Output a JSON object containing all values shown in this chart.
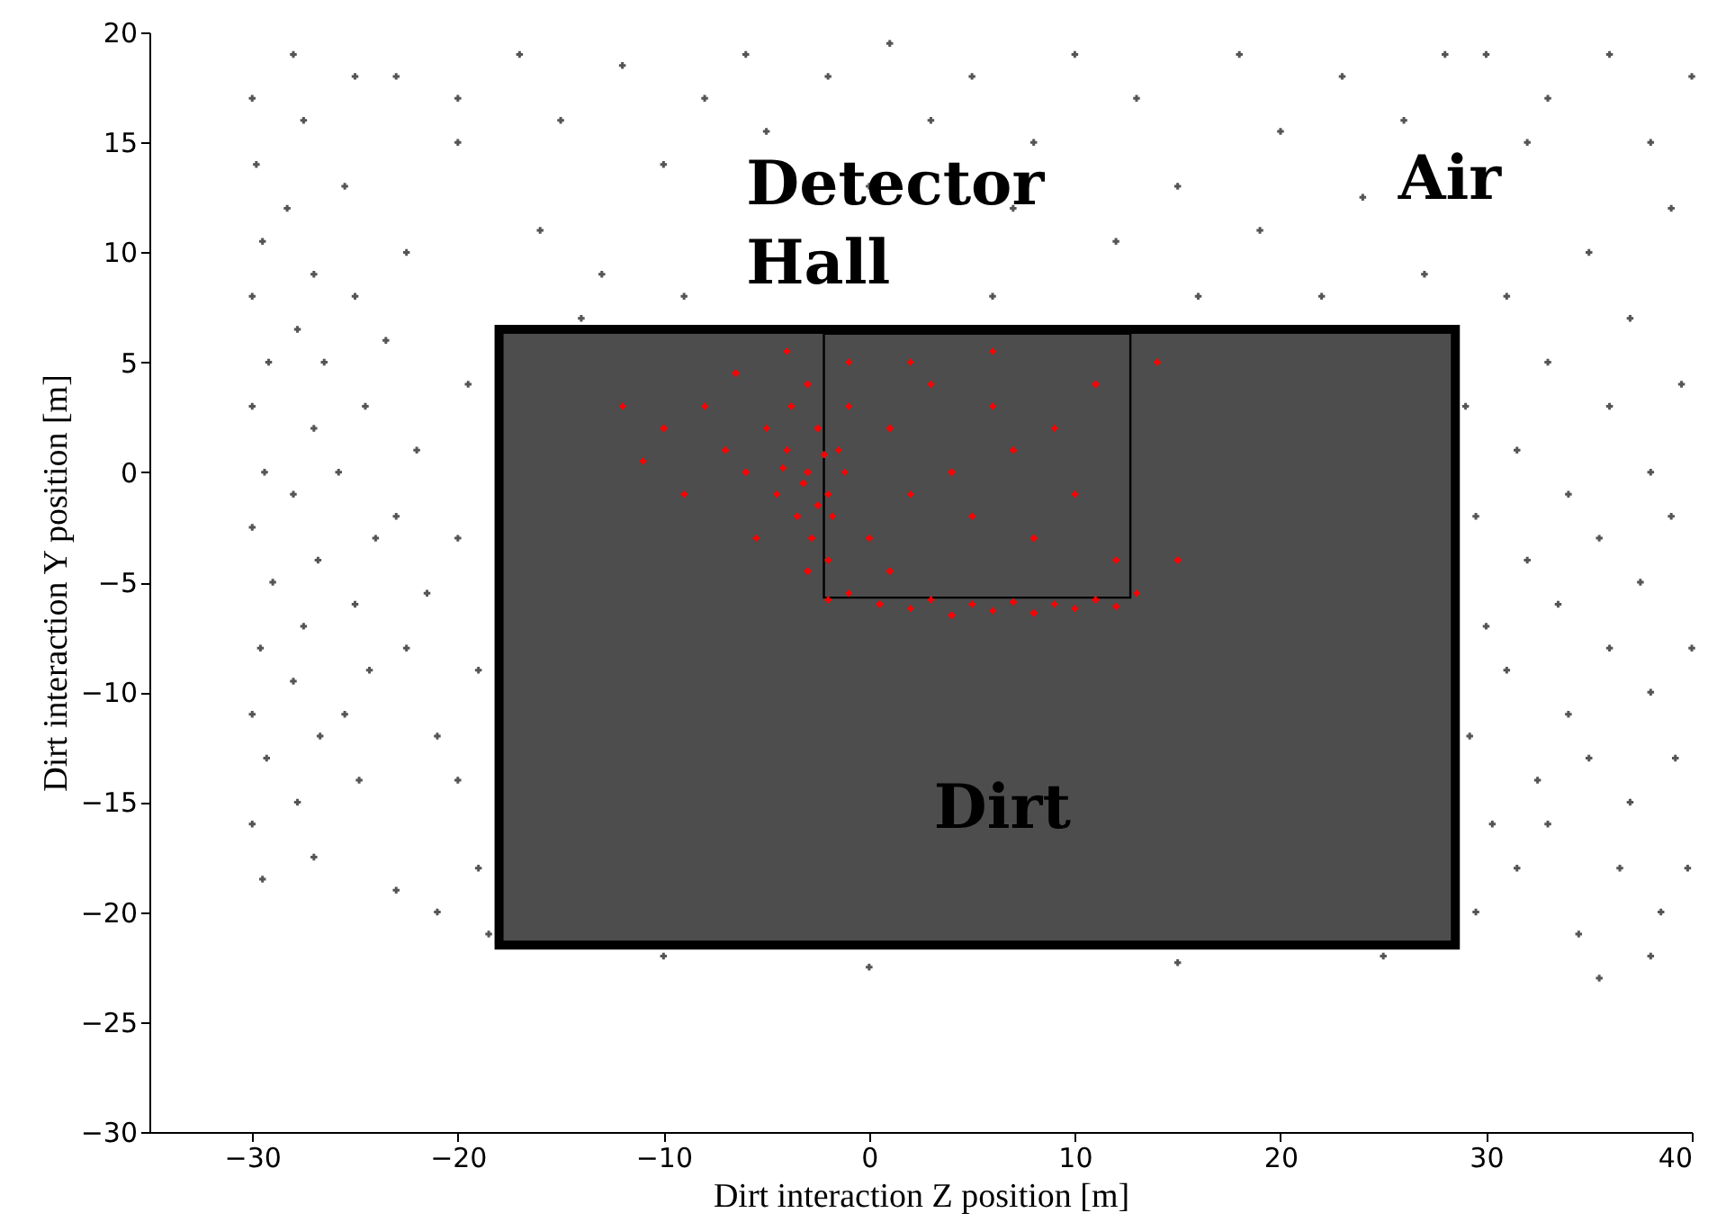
{
  "chart_data": {
    "type": "scatter",
    "xlabel": "Dirt interaction Z position [m]",
    "ylabel": "Dirt interaction Y position [m]",
    "xlim": [
      -35,
      40
    ],
    "xticks": [
      -30,
      -20,
      -10,
      0,
      10,
      20,
      30,
      40
    ],
    "ylim": [
      -30,
      20
    ],
    "yticks": [
      -30,
      -25,
      -20,
      -15,
      -10,
      -5,
      0,
      5,
      10,
      15,
      20
    ],
    "grid": false,
    "marker": "cross",
    "annotations": [
      "Detector Hall",
      "Air",
      "Dirt"
    ],
    "series": [
      {
        "color": "#555555",
        "x": [
          -30,
          -29.8,
          -29.5,
          -30,
          -29.2,
          -30,
          -29.4,
          -30,
          -29,
          -29.6,
          -30,
          -29.3,
          -30,
          -29.5,
          -28,
          -27.5,
          -28.3,
          -27,
          -27.8,
          -26.5,
          -27,
          -28,
          -26.8,
          -27.5,
          -28,
          -26.7,
          -27.8,
          -27,
          -25.5,
          -25,
          -24.5,
          -25.8,
          -24,
          -25,
          -24.3,
          -25.5,
          -24.8,
          -23,
          -22.5,
          -23.5,
          -22,
          -23,
          -21.5,
          -22.5,
          -21,
          -23,
          -21,
          -20,
          -19.5,
          -20,
          -19,
          -20,
          -19,
          -18.5,
          -17,
          -15,
          -12,
          -10,
          -16,
          -13,
          -8,
          -6,
          -9,
          -5,
          -2,
          0,
          1,
          3,
          5,
          7,
          8,
          10,
          12,
          13,
          15,
          16,
          18,
          19,
          20,
          22,
          23,
          24,
          26,
          27,
          28,
          -14,
          6,
          -20,
          -25,
          30,
          32,
          29,
          29.5,
          30,
          29.2,
          30.3,
          29.5,
          31,
          31.5,
          32,
          31,
          32.5,
          31.5,
          33,
          34,
          33.5,
          34,
          33,
          34.5,
          35,
          36,
          35.5,
          36,
          35,
          36.5,
          37,
          38,
          37.5,
          38,
          37,
          38.5,
          39,
          39.5,
          39,
          40,
          39.2,
          39.8,
          38,
          35.5,
          33,
          36,
          38,
          40,
          -10,
          0,
          15,
          25
        ],
        "values": [
          17,
          14,
          10.5,
          8,
          5,
          3,
          0,
          -2.5,
          -5,
          -8,
          -11,
          -13,
          -16,
          -18.5,
          19,
          16,
          12,
          9,
          6.5,
          5,
          2,
          -1,
          -4,
          -7,
          -9.5,
          -12,
          -15,
          -17.5,
          13,
          8,
          3,
          0,
          -3,
          -6,
          -9,
          -11,
          -14,
          18,
          10,
          6,
          1,
          -2,
          -5.5,
          -8,
          -12,
          -19,
          -20,
          15,
          4,
          -3,
          -9,
          -14,
          -18,
          -21,
          19,
          16,
          18.5,
          14,
          11,
          9,
          17,
          19,
          8,
          15.5,
          18,
          13,
          19.5,
          16,
          18,
          12,
          15,
          19,
          10.5,
          17,
          13,
          8,
          19,
          11,
          15.5,
          8,
          18,
          12.5,
          16,
          9,
          19,
          7,
          8,
          17,
          18,
          19,
          15,
          3,
          -2,
          -7,
          -12,
          -16,
          -20,
          8,
          1,
          -4,
          -9,
          -14,
          -18,
          5,
          -1,
          -6,
          -11,
          -16,
          -21,
          10,
          3,
          -3,
          -8,
          -13,
          -18,
          7,
          0,
          -5,
          -10,
          -15,
          -20,
          12,
          4,
          -2,
          -8,
          -13,
          -18,
          -22,
          -23,
          17,
          19,
          15,
          18,
          -22,
          -22.5,
          -22.3,
          -22
        ]
      },
      {
        "color": "#ff0000",
        "x": [
          -3,
          -2.5,
          -2,
          -3.5,
          -1.5,
          -4,
          -2.8,
          -1,
          -3,
          -4.5,
          -2,
          -5,
          -6,
          -3.2,
          -2.2,
          -1.8,
          -3.8,
          -5.5,
          -7,
          -8,
          -9,
          -10,
          -11,
          -6.5,
          -4,
          -1,
          0,
          1,
          2,
          3,
          4,
          5,
          6,
          7,
          8,
          9,
          10,
          11,
          12,
          1,
          0.5,
          2,
          3,
          4,
          5,
          6,
          7,
          8,
          9,
          10,
          11,
          12,
          13,
          -1,
          -2,
          14,
          15,
          -12,
          2,
          6,
          -3,
          -2.5,
          -1.2,
          -4.2
        ],
        "values": [
          0,
          2,
          -1,
          -2,
          1,
          1,
          -3,
          3,
          4,
          -1,
          -4,
          2,
          0,
          -0.5,
          0.8,
          -2,
          3,
          -3,
          1,
          3,
          -1,
          2,
          0.5,
          4.5,
          5.5,
          5,
          -3,
          2,
          -1,
          4,
          0,
          -2,
          3,
          1,
          -3,
          2,
          -1,
          4,
          -4,
          -4.5,
          -6,
          -6.2,
          -5.8,
          -6.5,
          -6,
          -6.3,
          -5.9,
          -6.4,
          -6,
          -6.2,
          -5.8,
          -6.1,
          -5.5,
          -5.5,
          -5.8,
          5,
          -4,
          3,
          5,
          5.5,
          -4.5,
          -1.5,
          0,
          0.2
        ]
      }
    ]
  }
}
